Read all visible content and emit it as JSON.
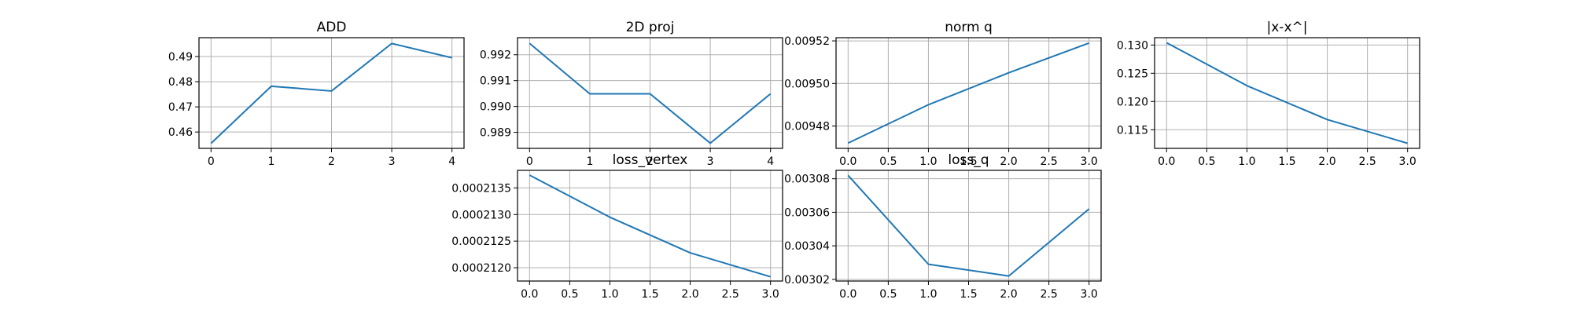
{
  "figure": {
    "line_color": "#1f77b4",
    "grid": true,
    "grid_color": "#b0b0b0"
  },
  "chart_data": [
    {
      "type": "line",
      "title": "ADD",
      "x": [
        0,
        1,
        2,
        3,
        4
      ],
      "values": [
        0.4555,
        0.4782,
        0.4763,
        0.4952,
        0.4895
      ],
      "xlim": [
        -0.2,
        4.2
      ],
      "ylim": [
        0.4535,
        0.4975
      ],
      "xticks": [
        0,
        1,
        2,
        3,
        4
      ],
      "xticklabels": [
        "0",
        "1",
        "2",
        "3",
        "4"
      ],
      "yticks": [
        0.46,
        0.47,
        0.48,
        0.49
      ],
      "yticklabels": [
        "0.46",
        "0.47",
        "0.48",
        "0.49"
      ]
    },
    {
      "type": "line",
      "title": "2D proj",
      "x": [
        0,
        1,
        2,
        3,
        4
      ],
      "values": [
        0.99244,
        0.99049,
        0.99049,
        0.98858,
        0.99049
      ],
      "xlim": [
        -0.2,
        4.2
      ],
      "ylim": [
        0.98838,
        0.99266
      ],
      "xticks": [
        0,
        1,
        2,
        3,
        4
      ],
      "xticklabels": [
        "0",
        "1",
        "2",
        "3",
        "4"
      ],
      "yticks": [
        0.989,
        0.99,
        0.991,
        0.992
      ],
      "yticklabels": [
        "0.989",
        "0.990",
        "0.991",
        "0.992"
      ]
    },
    {
      "type": "line",
      "title": "norm q",
      "x": [
        0,
        1,
        2,
        3
      ],
      "values": [
        0.009472,
        0.00949,
        0.009505,
        0.009519
      ],
      "xlim": [
        -0.15,
        3.15
      ],
      "ylim": [
        0.0094695,
        0.0095215
      ],
      "xticks": [
        0,
        0.5,
        1,
        1.5,
        2,
        2.5,
        3
      ],
      "xticklabels": [
        "0.0",
        "0.5",
        "1.0",
        "1.5",
        "2.0",
        "2.5",
        "3.0"
      ],
      "yticks": [
        0.00948,
        0.0095,
        0.00952
      ],
      "yticklabels": [
        "0.00948",
        "0.00950",
        "0.00952"
      ]
    },
    {
      "type": "line",
      "title": "|x-x^|",
      "x": [
        0,
        1,
        2,
        3
      ],
      "values": [
        0.1304,
        0.1228,
        0.1168,
        0.1126
      ],
      "xlim": [
        -0.15,
        3.15
      ],
      "ylim": [
        0.1117,
        0.1313
      ],
      "xticks": [
        0,
        0.5,
        1,
        1.5,
        2,
        2.5,
        3
      ],
      "xticklabels": [
        "0.0",
        "0.5",
        "1.0",
        "1.5",
        "2.0",
        "2.5",
        "3.0"
      ],
      "yticks": [
        0.115,
        0.12,
        0.125,
        0.13
      ],
      "yticklabels": [
        "0.115",
        "0.120",
        "0.125",
        "0.130"
      ]
    },
    {
      "type": "line",
      "title": "loss_vertex",
      "x": [
        0,
        1,
        2,
        3
      ],
      "values": [
        0.00021374,
        0.00021295,
        0.00021228,
        0.00021183
      ],
      "xlim": [
        -0.15,
        3.15
      ],
      "ylim": [
        0.00021175,
        0.00021383
      ],
      "xticks": [
        0,
        0.5,
        1,
        1.5,
        2,
        2.5,
        3
      ],
      "xticklabels": [
        "0.0",
        "0.5",
        "1.0",
        "1.5",
        "2.0",
        "2.5",
        "3.0"
      ],
      "yticks": [
        0.000212,
        0.0002125,
        0.000213,
        0.0002135
      ],
      "yticklabels": [
        "0.0002120",
        "0.0002125",
        "0.0002130",
        "0.0002135"
      ]
    },
    {
      "type": "line",
      "title": "loss_q",
      "x": [
        0,
        1,
        2,
        3
      ],
      "values": [
        0.003082,
        0.003029,
        0.003022,
        0.003062
      ],
      "xlim": [
        -0.15,
        3.15
      ],
      "ylim": [
        0.003019,
        0.003085
      ],
      "xticks": [
        0,
        0.5,
        1,
        1.5,
        2,
        2.5,
        3
      ],
      "xticklabels": [
        "0.0",
        "0.5",
        "1.0",
        "1.5",
        "2.0",
        "2.5",
        "3.0"
      ],
      "yticks": [
        0.00302,
        0.00304,
        0.00306,
        0.00308
      ],
      "yticklabels": [
        "0.00302",
        "0.00304",
        "0.00306",
        "0.00308"
      ]
    }
  ]
}
